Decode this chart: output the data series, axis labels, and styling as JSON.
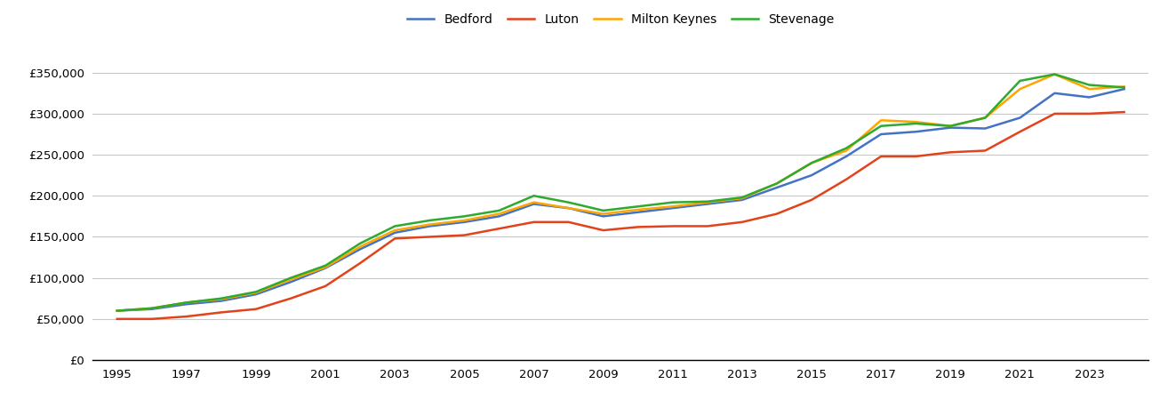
{
  "years": [
    1995,
    1996,
    1997,
    1998,
    1999,
    2000,
    2001,
    2002,
    2003,
    2004,
    2005,
    2006,
    2007,
    2008,
    2009,
    2010,
    2011,
    2012,
    2013,
    2014,
    2015,
    2016,
    2017,
    2018,
    2019,
    2020,
    2021,
    2022,
    2023,
    2024
  ],
  "Bedford": [
    60000,
    62000,
    68000,
    72000,
    80000,
    95000,
    112000,
    135000,
    155000,
    163000,
    168000,
    175000,
    190000,
    185000,
    175000,
    180000,
    185000,
    190000,
    195000,
    210000,
    225000,
    248000,
    275000,
    278000,
    283000,
    282000,
    295000,
    325000,
    320000,
    330000
  ],
  "Luton": [
    50000,
    50000,
    53000,
    58000,
    62000,
    75000,
    90000,
    118000,
    148000,
    150000,
    152000,
    160000,
    168000,
    168000,
    158000,
    162000,
    163000,
    163000,
    168000,
    178000,
    195000,
    220000,
    248000,
    248000,
    253000,
    255000,
    278000,
    300000,
    300000,
    302000
  ],
  "Milton Keynes": [
    60000,
    63000,
    70000,
    74000,
    82000,
    98000,
    113000,
    138000,
    158000,
    165000,
    170000,
    178000,
    192000,
    185000,
    178000,
    183000,
    187000,
    192000,
    197000,
    215000,
    240000,
    255000,
    292000,
    290000,
    285000,
    295000,
    330000,
    348000,
    330000,
    333000
  ],
  "Stevenage": [
    60000,
    63000,
    70000,
    75000,
    83000,
    100000,
    115000,
    142000,
    163000,
    170000,
    175000,
    182000,
    200000,
    192000,
    182000,
    187000,
    192000,
    193000,
    198000,
    215000,
    240000,
    258000,
    285000,
    288000,
    285000,
    295000,
    340000,
    348000,
    335000,
    332000
  ],
  "colors": {
    "Bedford": "#4472C4",
    "Luton": "#E3431B",
    "Milton Keynes": "#FFA500",
    "Stevenage": "#2EAA2E"
  },
  "ylim": [
    0,
    380000
  ],
  "yticks": [
    0,
    50000,
    100000,
    150000,
    200000,
    250000,
    300000,
    350000
  ],
  "xticks": [
    1995,
    1997,
    1999,
    2001,
    2003,
    2005,
    2007,
    2009,
    2011,
    2013,
    2015,
    2017,
    2019,
    2021,
    2023
  ],
  "xlim": [
    1994.3,
    2024.7
  ],
  "background_color": "#ffffff",
  "grid_color": "#c8c8c8",
  "line_width": 1.8,
  "legend_order": [
    "Bedford",
    "Luton",
    "Milton Keynes",
    "Stevenage"
  ]
}
